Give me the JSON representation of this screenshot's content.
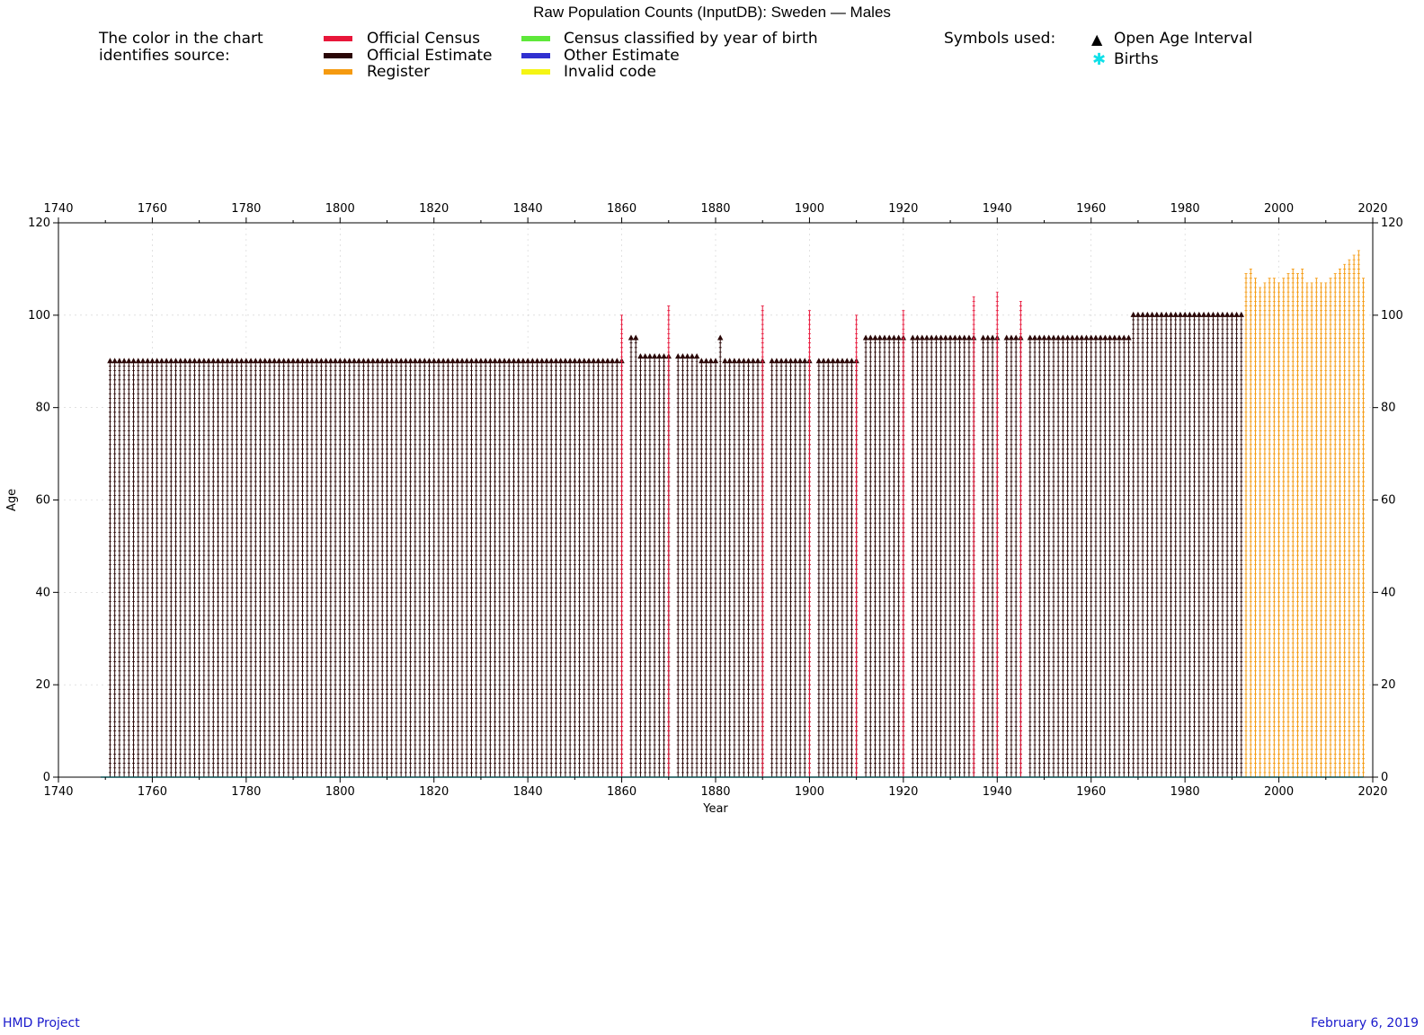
{
  "chart_data": {
    "type": "scatter",
    "title": "Raw Population Counts (InputDB): Sweden — Males",
    "xlabel": "Year",
    "ylabel": "Age",
    "xlim": [
      1740,
      2020
    ],
    "ylim": [
      0,
      120
    ],
    "x_ticks": [
      1740,
      1760,
      1780,
      1800,
      1820,
      1840,
      1860,
      1880,
      1900,
      1920,
      1940,
      1960,
      1980,
      2000,
      2020
    ],
    "y_ticks": [
      0,
      20,
      40,
      60,
      80,
      100,
      120
    ],
    "grid": true,
    "legend_placement": "top",
    "legend": {
      "caption_line1": "The color in the chart",
      "caption_line2": "identifies source:",
      "sources": [
        {
          "label": "Official Census",
          "color": "#e8163a"
        },
        {
          "label": "Official Estimate",
          "color": "#2a0606"
        },
        {
          "label": "Register",
          "color": "#f59a10"
        },
        {
          "label": "Census classified by year of birth",
          "color": "#5ee83a"
        },
        {
          "label": "Other Estimate",
          "color": "#3030d0"
        },
        {
          "label": "Invalid code",
          "color": "#f5f514"
        }
      ],
      "symbols_caption": "Symbols used:",
      "symbols": [
        {
          "label": "Open Age Interval",
          "icon": "triangle-up-icon",
          "color": "#000000"
        },
        {
          "label": "Births",
          "icon": "asterisk-icon",
          "color": "#10e0e8"
        }
      ]
    },
    "series": [
      {
        "source": "Official Estimate",
        "year_range": [
          1751,
          1860
        ],
        "max_age": 90,
        "open_interval": true
      },
      {
        "source": "Official Estimate",
        "year_range": [
          1862,
          1863
        ],
        "max_age": 95,
        "open_interval": true
      },
      {
        "source": "Official Estimate",
        "year_range": [
          1864,
          1870
        ],
        "max_age": 91,
        "open_interval": true
      },
      {
        "source": "Official Estimate",
        "year_range": [
          1872,
          1876
        ],
        "max_age": 91,
        "open_interval": true
      },
      {
        "source": "Official Estimate",
        "year_range": [
          1877,
          1880
        ],
        "max_age": 90,
        "open_interval": true
      },
      {
        "source": "Official Estimate",
        "year_range": [
          1881,
          1881
        ],
        "max_age": 95,
        "open_interval": true
      },
      {
        "source": "Official Estimate",
        "year_range": [
          1882,
          1890
        ],
        "max_age": 90,
        "open_interval": true
      },
      {
        "source": "Official Estimate",
        "year_range": [
          1892,
          1900
        ],
        "max_age": 90,
        "open_interval": true
      },
      {
        "source": "Official Estimate",
        "year_range": [
          1902,
          1910
        ],
        "max_age": 90,
        "open_interval": true
      },
      {
        "source": "Official Estimate",
        "year_range": [
          1912,
          1920
        ],
        "max_age": 95,
        "open_interval": true
      },
      {
        "source": "Official Estimate",
        "year_range": [
          1922,
          1935
        ],
        "max_age": 95,
        "open_interval": true
      },
      {
        "source": "Official Estimate",
        "year_range": [
          1937,
          1940
        ],
        "max_age": 95,
        "open_interval": true
      },
      {
        "source": "Official Estimate",
        "year_range": [
          1942,
          1945
        ],
        "max_age": 95,
        "open_interval": true
      },
      {
        "source": "Official Estimate",
        "year_range": [
          1947,
          1968
        ],
        "max_age": 95,
        "open_interval": true
      },
      {
        "source": "Official Estimate",
        "year_range": [
          1969,
          1992
        ],
        "max_age": 100,
        "open_interval": true
      },
      {
        "source": "Official Census",
        "years": [
          1860,
          1870,
          1890,
          1900,
          1910,
          1920,
          1935,
          1940,
          1945
        ],
        "max_ages": [
          100,
          102,
          102,
          101,
          100,
          101,
          104,
          105,
          103
        ]
      },
      {
        "source": "Register",
        "years": [
          1993,
          1994,
          1995,
          1996,
          1997,
          1998,
          1999,
          2000,
          2001,
          2002,
          2003,
          2004,
          2005,
          2006,
          2007,
          2008,
          2009,
          2010,
          2011,
          2012,
          2013,
          2014,
          2015,
          2016,
          2017,
          2018
        ],
        "max_ages": [
          109,
          110,
          108,
          106,
          107,
          108,
          108,
          107,
          108,
          109,
          110,
          109,
          110,
          107,
          107,
          108,
          107,
          107,
          108,
          109,
          110,
          111,
          112,
          113,
          114,
          108
        ]
      },
      {
        "source": "Births",
        "year_range": [
          1749,
          2018
        ],
        "age": 0
      }
    ]
  },
  "footer": {
    "left": "HMD Project",
    "right": "February 6, 2019"
  }
}
